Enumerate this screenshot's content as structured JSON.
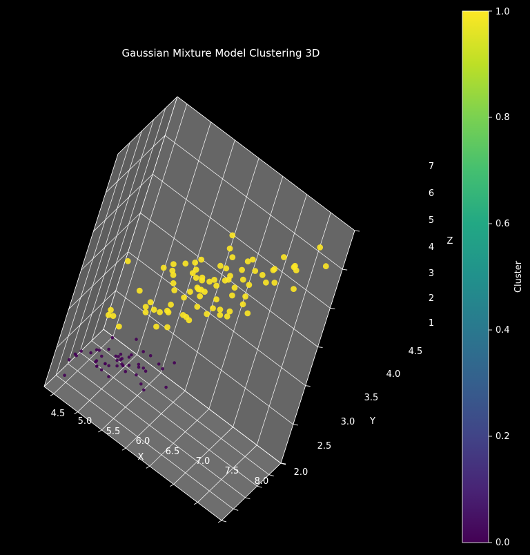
{
  "chart_data": {
    "type": "scatter3d",
    "title": "Gaussian Mixture Model Clustering 3D",
    "xlabel": "X",
    "ylabel": "Y",
    "zlabel": "Z",
    "xlim": [
      4.3,
      8.0
    ],
    "ylim": [
      2.0,
      4.5
    ],
    "zlim": [
      1,
      7
    ],
    "x_ticks": [
      "4.5",
      "5.0",
      "5.5",
      "6.0",
      "6.5",
      "7.0",
      "7.5",
      "8.0"
    ],
    "y_ticks": [
      "2.0",
      "2.5",
      "3.0",
      "3.5",
      "4.0",
      "4.5"
    ],
    "z_ticks": [
      "1",
      "2",
      "3",
      "4",
      "5",
      "6",
      "7"
    ],
    "grid": true,
    "colormap": "viridis",
    "colorbar": {
      "label": "Cluster",
      "range": [
        0.0,
        1.0
      ],
      "ticks": [
        "0.0",
        "0.2",
        "0.4",
        "0.6",
        "0.8",
        "1.0"
      ]
    },
    "colors": {
      "cluster_0": "#440154",
      "cluster_1": "#fde725",
      "background": "#000000",
      "pane": "#7f7f7f",
      "grid": "#ffffff"
    },
    "series": [
      {
        "cluster": 0,
        "points": [
          [
            4.4,
            3.0,
            1.3
          ],
          [
            4.7,
            3.2,
            1.3
          ],
          [
            4.9,
            3.0,
            1.4
          ],
          [
            5.0,
            3.6,
            1.4
          ],
          [
            5.4,
            3.9,
            1.7
          ],
          [
            4.6,
            3.4,
            1.4
          ],
          [
            5.0,
            3.4,
            1.5
          ],
          [
            4.4,
            2.9,
            1.4
          ],
          [
            4.9,
            3.1,
            1.5
          ],
          [
            5.4,
            3.7,
            1.5
          ],
          [
            4.8,
            3.4,
            1.6
          ],
          [
            4.8,
            3.0,
            1.4
          ],
          [
            4.3,
            3.0,
            1.1
          ],
          [
            5.8,
            4.0,
            1.2
          ],
          [
            5.7,
            4.4,
            1.5
          ],
          [
            5.4,
            3.9,
            1.3
          ],
          [
            5.1,
            3.5,
            1.4
          ],
          [
            5.7,
            3.8,
            1.7
          ],
          [
            5.1,
            3.8,
            1.5
          ],
          [
            5.4,
            3.4,
            1.7
          ],
          [
            5.1,
            3.7,
            1.5
          ],
          [
            4.6,
            3.6,
            1.0
          ],
          [
            5.1,
            3.3,
            1.7
          ],
          [
            4.8,
            3.4,
            1.9
          ],
          [
            5.0,
            3.0,
            1.6
          ],
          [
            5.0,
            3.4,
            1.6
          ],
          [
            5.2,
            3.5,
            1.5
          ],
          [
            5.2,
            3.4,
            1.4
          ],
          [
            4.7,
            3.2,
            1.6
          ],
          [
            4.8,
            3.1,
            1.6
          ],
          [
            5.4,
            3.4,
            1.5
          ],
          [
            5.2,
            4.1,
            1.5
          ],
          [
            5.5,
            4.2,
            1.4
          ],
          [
            4.9,
            3.1,
            1.5
          ],
          [
            5.0,
            3.2,
            1.2
          ],
          [
            5.5,
            3.5,
            1.3
          ],
          [
            4.4,
            3.2,
            1.3
          ],
          [
            5.1,
            3.4,
            1.5
          ],
          [
            5.0,
            3.5,
            1.3
          ],
          [
            4.5,
            2.3,
            1.3
          ],
          [
            5.0,
            3.5,
            1.6
          ],
          [
            5.1,
            3.8,
            1.9
          ],
          [
            4.8,
            3.0,
            1.4
          ],
          [
            5.3,
            3.7,
            1.5
          ],
          [
            5.1,
            3.5,
            1.4
          ],
          [
            4.6,
            3.1,
            1.5
          ],
          [
            4.9,
            3.6,
            1.4
          ],
          [
            5.8,
            2.7,
            1.9
          ]
        ]
      },
      {
        "cluster": 1,
        "points": [
          [
            7.0,
            3.2,
            4.7
          ],
          [
            6.4,
            3.2,
            4.5
          ],
          [
            6.9,
            3.1,
            4.9
          ],
          [
            5.5,
            2.3,
            4.0
          ],
          [
            6.5,
            2.8,
            4.6
          ],
          [
            5.7,
            2.8,
            4.5
          ],
          [
            6.3,
            3.3,
            4.7
          ],
          [
            4.9,
            2.4,
            3.3
          ],
          [
            6.6,
            2.9,
            4.6
          ],
          [
            5.2,
            2.7,
            3.9
          ],
          [
            5.0,
            2.0,
            3.5
          ],
          [
            5.9,
            3.0,
            4.2
          ],
          [
            6.0,
            2.2,
            4.0
          ],
          [
            6.1,
            2.9,
            4.7
          ],
          [
            5.6,
            2.9,
            3.6
          ],
          [
            6.7,
            3.1,
            4.4
          ],
          [
            5.6,
            3.0,
            4.5
          ],
          [
            5.8,
            2.7,
            4.1
          ],
          [
            6.2,
            2.2,
            4.5
          ],
          [
            5.6,
            2.5,
            3.9
          ],
          [
            5.9,
            3.2,
            4.8
          ],
          [
            6.1,
            2.8,
            4.0
          ],
          [
            6.3,
            2.5,
            4.9
          ],
          [
            6.4,
            2.9,
            4.3
          ],
          [
            6.6,
            3.0,
            4.4
          ],
          [
            6.8,
            2.8,
            4.8
          ],
          [
            6.7,
            3.0,
            5.0
          ],
          [
            6.0,
            2.9,
            4.5
          ],
          [
            5.7,
            2.6,
            3.5
          ],
          [
            5.5,
            2.4,
            3.8
          ],
          [
            5.8,
            2.7,
            3.9
          ],
          [
            6.0,
            2.7,
            5.1
          ],
          [
            5.4,
            3.0,
            4.5
          ],
          [
            6.0,
            3.4,
            4.5
          ],
          [
            6.3,
            2.3,
            4.4
          ],
          [
            5.5,
            2.5,
            4.0
          ],
          [
            6.1,
            3.0,
            4.6
          ],
          [
            5.8,
            2.6,
            4.0
          ],
          [
            5.0,
            2.3,
            3.3
          ],
          [
            5.7,
            3.0,
            4.2
          ],
          [
            6.2,
            2.9,
            4.3
          ],
          [
            5.1,
            2.5,
            3.0
          ],
          [
            6.3,
            3.3,
            6.0
          ],
          [
            7.1,
            3.0,
            5.9
          ],
          [
            6.5,
            3.0,
            5.8
          ],
          [
            7.6,
            3.0,
            6.6
          ],
          [
            4.9,
            2.5,
            4.5
          ],
          [
            7.3,
            2.9,
            6.3
          ],
          [
            6.7,
            2.5,
            5.8
          ],
          [
            7.2,
            3.6,
            6.1
          ],
          [
            6.4,
            2.7,
            5.3
          ],
          [
            6.8,
            3.0,
            5.5
          ],
          [
            5.7,
            2.5,
            5.0
          ],
          [
            6.4,
            3.2,
            5.3
          ],
          [
            7.7,
            3.8,
            6.7
          ],
          [
            7.7,
            2.6,
            6.9
          ],
          [
            6.9,
            3.2,
            5.7
          ],
          [
            5.6,
            2.8,
            4.9
          ],
          [
            7.7,
            2.8,
            6.7
          ],
          [
            6.3,
            2.7,
            4.9
          ],
          [
            6.7,
            3.3,
            5.7
          ],
          [
            7.2,
            3.2,
            6.0
          ],
          [
            6.2,
            2.8,
            4.8
          ],
          [
            6.1,
            3.0,
            4.9
          ],
          [
            6.4,
            2.8,
            5.6
          ],
          [
            7.2,
            3.0,
            5.8
          ],
          [
            7.4,
            2.8,
            6.1
          ],
          [
            7.9,
            3.8,
            6.4
          ],
          [
            6.3,
            2.8,
            5.1
          ],
          [
            6.1,
            2.6,
            5.6
          ],
          [
            7.7,
            3.0,
            6.1
          ],
          [
            6.3,
            3.4,
            5.6
          ],
          [
            6.0,
            3.0,
            4.8
          ],
          [
            6.9,
            3.1,
            5.4
          ],
          [
            6.7,
            3.1,
            5.6
          ],
          [
            6.9,
            3.1,
            5.1
          ],
          [
            6.8,
            3.2,
            5.9
          ],
          [
            6.7,
            3.0,
            5.2
          ],
          [
            6.5,
            3.0,
            5.2
          ],
          [
            5.9,
            3.0,
            5.1
          ],
          [
            5.8,
            2.8,
            5.1
          ],
          [
            6.5,
            3.2,
            5.1
          ]
        ]
      }
    ]
  }
}
